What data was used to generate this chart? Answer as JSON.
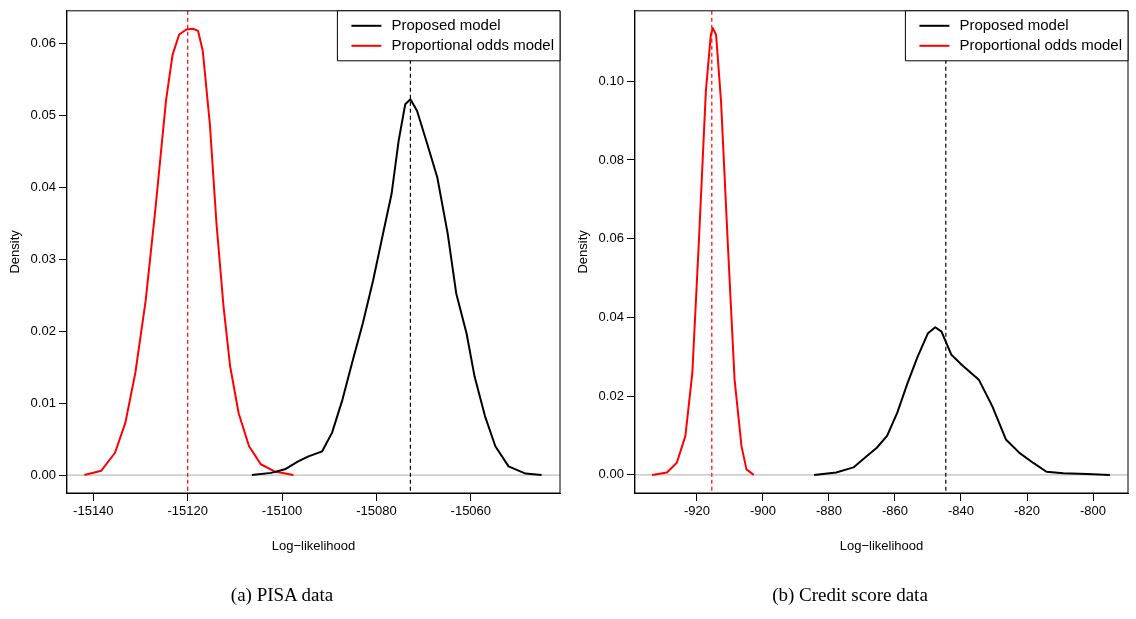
{
  "chart_data": [
    {
      "type": "line",
      "title": "(a) PISA data",
      "xlabel": "Log−likelihood",
      "ylabel": "Density",
      "legend": "top right",
      "marker": "none",
      "line_style": "solid",
      "xlim": [
        -15145.6,
        -15041.1
      ],
      "xticks": [
        -15140,
        -15120,
        -15100,
        -15080,
        -15060
      ],
      "ylim": [
        -0.0025,
        0.0646
      ],
      "yticks": [
        {
          "value": 0,
          "label": "0.00"
        },
        {
          "value": 0.01,
          "label": "0.01"
        },
        {
          "value": 0.02,
          "label": "0.02"
        },
        {
          "value": 0.03,
          "label": "0.03"
        },
        {
          "value": 0.04,
          "label": "0.04"
        },
        {
          "value": 0.05,
          "label": "0.05"
        },
        {
          "value": 0.06,
          "label": "0.06"
        }
      ],
      "ref_lines": [
        {
          "axis": "y",
          "value": 0,
          "color": "#bebebe",
          "line_style": "solid"
        },
        {
          "axis": "x",
          "value": -15120,
          "color": "#ff0000",
          "line_style": "dashed"
        },
        {
          "axis": "x",
          "value": -15072.8,
          "color": "#000000",
          "line_style": "dashed"
        }
      ],
      "series": [
        {
          "name": "Proposed model",
          "color": "#000000",
          "x": [
            -15106.4,
            -15102.3,
            -15099.4,
            -15096.6,
            -15094.4,
            -15091.5,
            -15089.4,
            -15087.2,
            -15085.0,
            -15082.9,
            -15080.7,
            -15078.6,
            -15076.8,
            -15075.3,
            -15073.9,
            -15072.8,
            -15071.4,
            -15069.2,
            -15067.1,
            -15064.9,
            -15063.1,
            -15060.9,
            -15059.2,
            -15057.0,
            -15054.8,
            -15052.0,
            -15048.4,
            -15045.0
          ],
          "values": [
            0,
            0.0003,
            0.0008,
            0.0019,
            0.0026,
            0.0033,
            0.0059,
            0.0105,
            0.016,
            0.0211,
            0.0271,
            0.0336,
            0.0391,
            0.0465,
            0.0516,
            0.0523,
            0.0507,
            0.046,
            0.0414,
            0.0336,
            0.0253,
            0.0197,
            0.0137,
            0.0082,
            0.004,
            0.0012,
            0.0002,
            0
          ]
        },
        {
          "name": "Proportional odds model",
          "color": "#ff0000",
          "x": [
            -15141.9,
            -15138.3,
            -15135.4,
            -15133.2,
            -15131.1,
            -15128.9,
            -15126.8,
            -15124.6,
            -15123.2,
            -15121.8,
            -15120.3,
            -15118.9,
            -15117.8,
            -15116.8,
            -15115.3,
            -15113.9,
            -15112.4,
            -15111.0,
            -15109.2,
            -15107.0,
            -15104.5,
            -15101.6,
            -15097.6
          ],
          "values": [
            0,
            0.0006,
            0.0031,
            0.0073,
            0.0142,
            0.0243,
            0.0373,
            0.0521,
            0.0585,
            0.0613,
            0.062,
            0.0621,
            0.0618,
            0.059,
            0.0488,
            0.035,
            0.0234,
            0.0151,
            0.0086,
            0.004,
            0.0015,
            0.0005,
            0
          ]
        }
      ]
    },
    {
      "type": "line",
      "title": "(b) Credit score data",
      "xlabel": "Log−likelihood",
      "ylabel": "Density",
      "legend": "top right",
      "marker": "none",
      "line_style": "solid",
      "xlim": [
        -938.8,
        -789.4
      ],
      "xticks": [
        -920,
        -900,
        -880,
        -860,
        -840,
        -820,
        -800
      ],
      "ylim": [
        -0.0046,
        0.1179
      ],
      "yticks": [
        {
          "value": 0,
          "label": "0.00"
        },
        {
          "value": 0.02,
          "label": "0.02"
        },
        {
          "value": 0.04,
          "label": "0.04"
        },
        {
          "value": 0.06,
          "label": "0.06"
        },
        {
          "value": 0.08,
          "label": "0.08"
        },
        {
          "value": 0.1,
          "label": "0.10"
        }
      ],
      "ref_lines": [
        {
          "axis": "y",
          "value": 0,
          "color": "#bebebe",
          "line_style": "solid"
        },
        {
          "axis": "x",
          "value": -915.5,
          "color": "#ff0000",
          "line_style": "dashed"
        },
        {
          "axis": "x",
          "value": -844.6,
          "color": "#000000",
          "line_style": "dashed"
        }
      ],
      "series": [
        {
          "name": "Proposed model",
          "color": "#000000",
          "x": [
            -884.5,
            -877.8,
            -872.6,
            -868.5,
            -865.5,
            -862.4,
            -859.3,
            -856.2,
            -853.1,
            -850.0,
            -847.8,
            -845.9,
            -842.9,
            -839.8,
            -834.6,
            -830.5,
            -826.4,
            -822.3,
            -818.2,
            -814.1,
            -809.0,
            -801.8,
            -794.9
          ],
          "values": [
            0,
            0.0006,
            0.0019,
            0.0048,
            0.0069,
            0.0099,
            0.0158,
            0.0233,
            0.0301,
            0.036,
            0.0375,
            0.0364,
            0.0305,
            0.028,
            0.0242,
            0.0174,
            0.009,
            0.0056,
            0.0031,
            0.0008,
            0.0004,
            0.0002,
            0
          ]
        },
        {
          "name": "Proportional odds model",
          "color": "#ff0000",
          "x": [
            -933.6,
            -929.1,
            -926.1,
            -923.5,
            -921.4,
            -919.4,
            -917.3,
            -915.8,
            -915.2,
            -914.2,
            -912.7,
            -910.7,
            -908.6,
            -906.5,
            -905.0,
            -902.8
          ],
          "values": [
            0,
            0.0006,
            0.0031,
            0.0099,
            0.0259,
            0.0596,
            0.0975,
            0.1118,
            0.1135,
            0.1118,
            0.0949,
            0.0596,
            0.0242,
            0.0073,
            0.0014,
            0
          ]
        }
      ]
    }
  ]
}
